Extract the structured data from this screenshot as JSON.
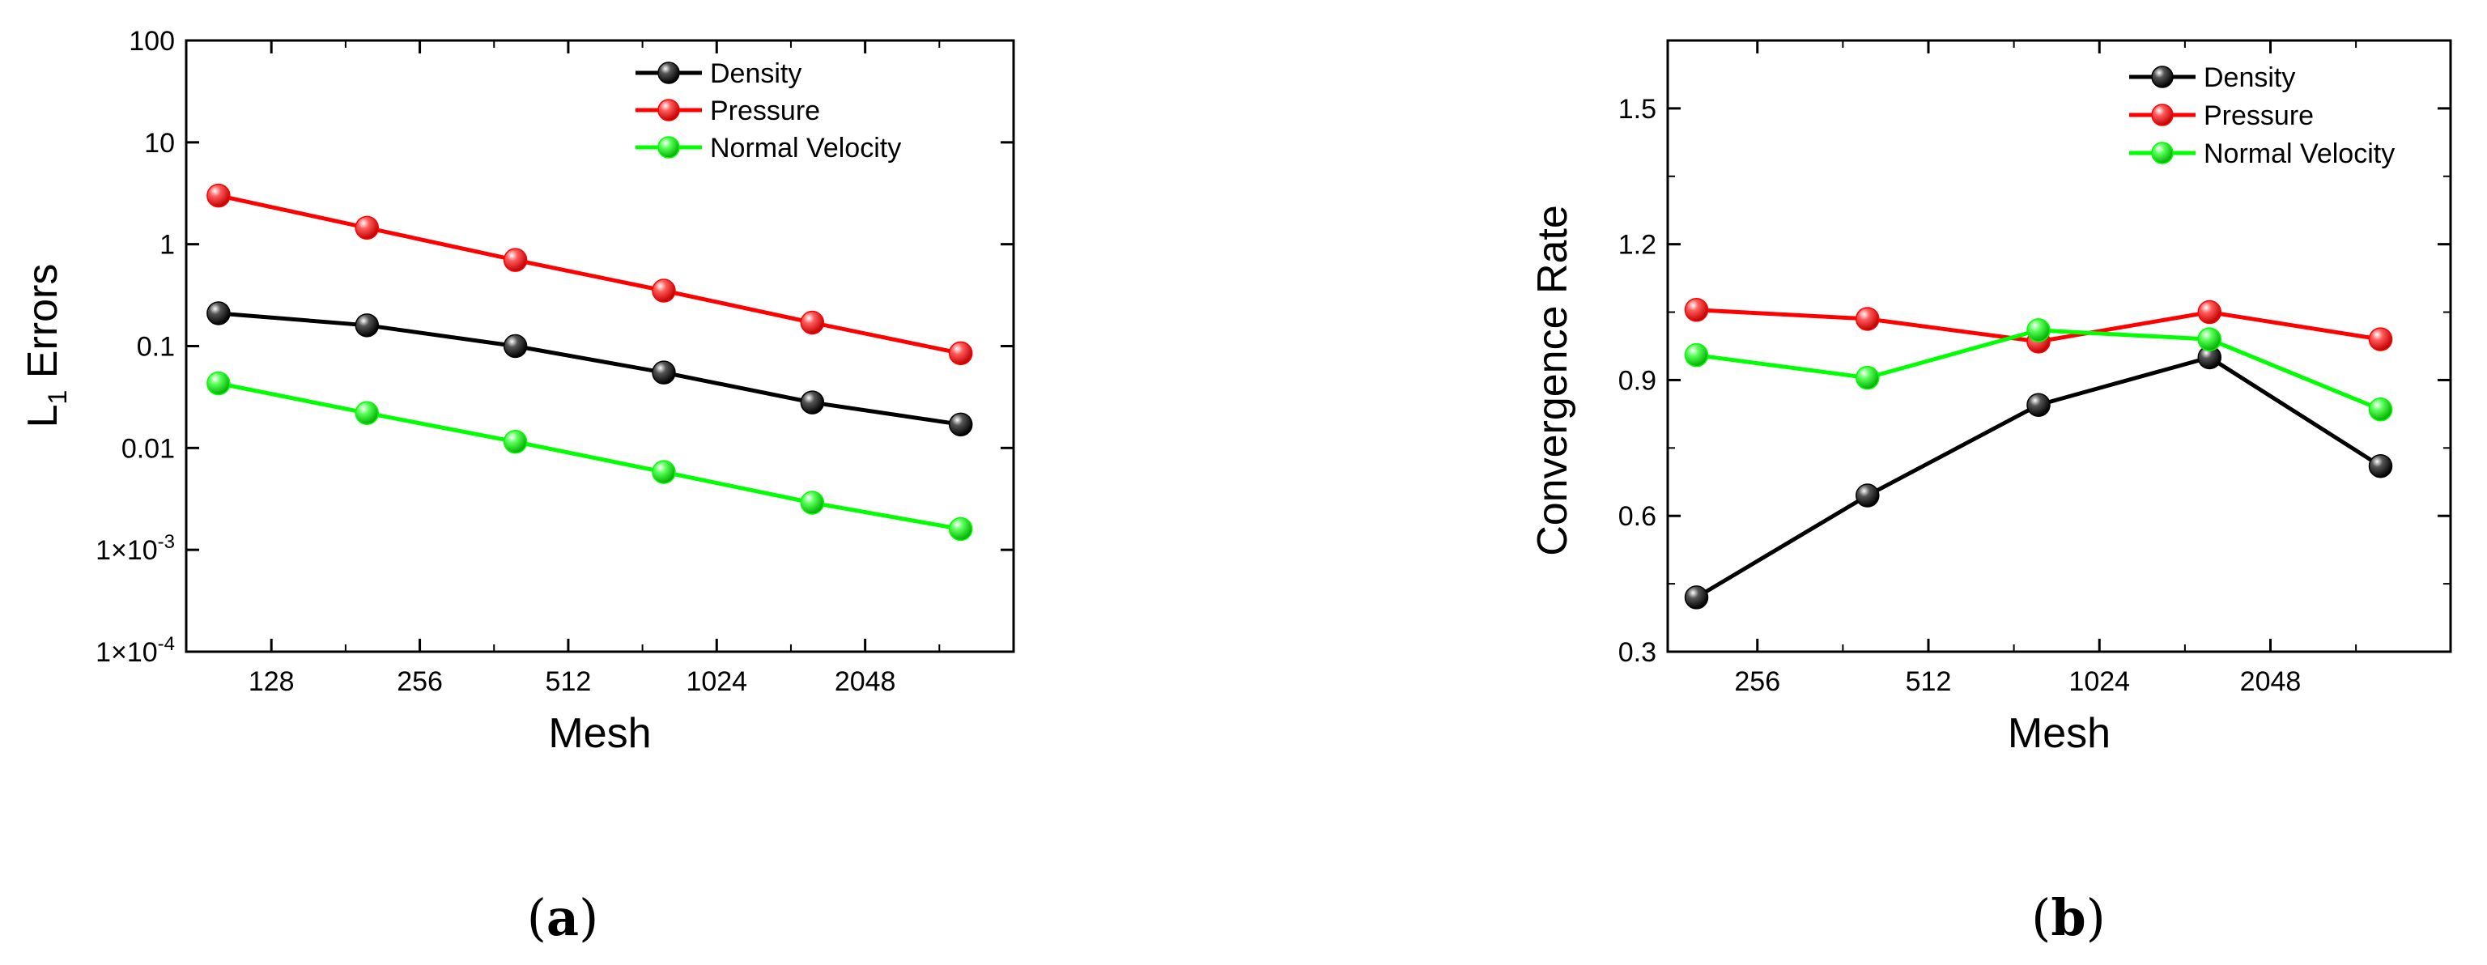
{
  "colors": {
    "density": "#000000",
    "pressure": "#ff0000",
    "normal_velocity": "#00ff00"
  },
  "chart_data": [
    {
      "type": "line",
      "panel_label_parts": [
        "(",
        "a",
        ")"
      ],
      "xlabel": "Mesh",
      "ylabel_main": "L",
      "ylabel_sub": "1",
      "ylabel_rest": " Errors",
      "x_scale": "log2",
      "y_scale": "log10",
      "xlim": [
        86,
        4096
      ],
      "ylim": [
        0.0001,
        100
      ],
      "x_ticks": [
        128,
        256,
        512,
        1024,
        2048
      ],
      "x_tick_labels": [
        "128",
        "256",
        "512",
        "1024",
        "2048"
      ],
      "y_ticks": [
        0.0001,
        0.001,
        0.01,
        0.1,
        1,
        10,
        100
      ],
      "y_tick_labels": [
        {
          "base": "1×10",
          "exp": "-4"
        },
        {
          "base": "1×10",
          "exp": "-3"
        },
        {
          "base": "0.01",
          "exp": ""
        },
        {
          "base": "0.1",
          "exp": ""
        },
        {
          "base": "1",
          "exp": ""
        },
        {
          "base": "10",
          "exp": ""
        },
        {
          "base": "100",
          "exp": ""
        }
      ],
      "x": [
        100,
        200,
        400,
        800,
        1600,
        3200
      ],
      "series": [
        {
          "name": "Density",
          "color_key": "density",
          "values": [
            0.21,
            0.16,
            0.1,
            0.055,
            0.028,
            0.017
          ]
        },
        {
          "name": "Pressure",
          "color_key": "pressure",
          "values": [
            3.0,
            1.45,
            0.7,
            0.35,
            0.17,
            0.085
          ]
        },
        {
          "name": "Normal Velocity",
          "color_key": "normal_velocity",
          "values": [
            0.043,
            0.022,
            0.0115,
            0.0058,
            0.0029,
            0.0016
          ]
        }
      ],
      "legend_position": "top-right"
    },
    {
      "type": "line",
      "panel_label_parts": [
        "(",
        "b",
        ")"
      ],
      "xlabel": "Mesh",
      "ylabel": "Convergence Rate",
      "x_scale": "log2",
      "y_scale": "linear",
      "xlim": [
        178,
        4250
      ],
      "ylim": [
        0.3,
        1.65
      ],
      "x_ticks": [
        256,
        512,
        1024,
        2048
      ],
      "x_tick_labels": [
        "256",
        "512",
        "1024",
        "2048"
      ],
      "y_ticks": [
        0.3,
        0.6,
        0.9,
        1.2,
        1.5
      ],
      "y_tick_labels": [
        "0.3",
        "0.6",
        "0.9",
        "1.2",
        "1.5"
      ],
      "x": [
        200,
        400,
        800,
        1600,
        3200
      ],
      "series": [
        {
          "name": "Density",
          "color_key": "density",
          "values": [
            0.42,
            0.645,
            0.845,
            0.95,
            0.71
          ]
        },
        {
          "name": "Pressure",
          "color_key": "pressure",
          "values": [
            1.055,
            1.035,
            0.985,
            1.05,
            0.99
          ]
        },
        {
          "name": "Normal Velocity",
          "color_key": "normal_velocity",
          "values": [
            0.955,
            0.905,
            1.01,
            0.99,
            0.835
          ]
        }
      ],
      "legend_position": "top-right"
    }
  ]
}
